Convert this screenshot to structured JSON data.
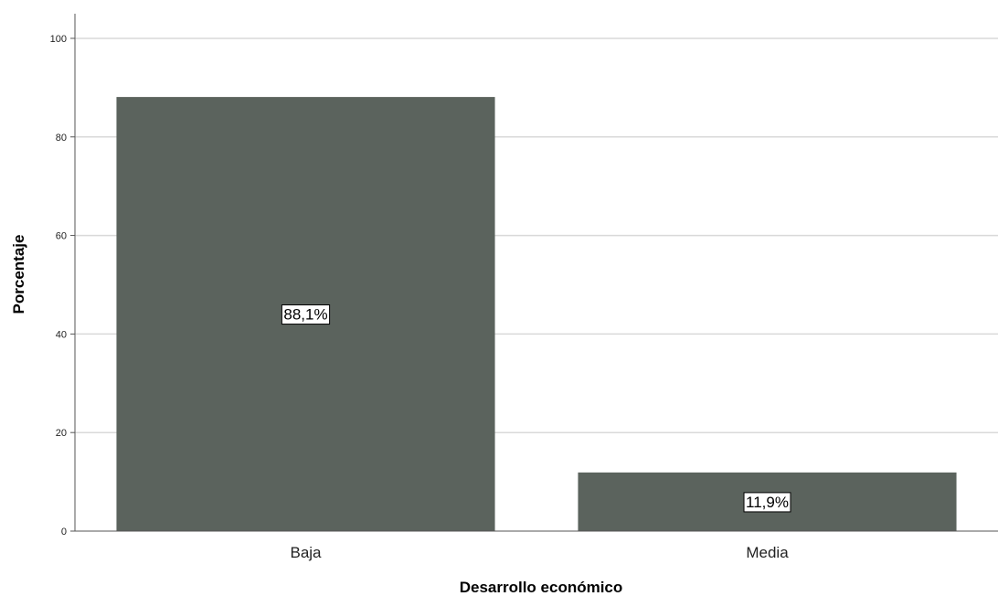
{
  "chart_data": {
    "type": "bar",
    "categories": [
      "Baja",
      "Media"
    ],
    "values": [
      88.1,
      11.9
    ],
    "data_labels": [
      "88,1%",
      "11,9%"
    ],
    "title": "",
    "xlabel": "Desarrollo económico",
    "ylabel": "Porcentaje",
    "ylim": [
      0,
      105
    ],
    "yticks": [
      0,
      20,
      40,
      60,
      80,
      100
    ],
    "ytick_labels": [
      "0",
      "20",
      "40",
      "60",
      "80",
      "100"
    ],
    "grid": "horizontal",
    "legend": "none",
    "colors": {
      "bar": "#5b635d",
      "grid": "#d9d9d9",
      "axis": "#555555",
      "label_box": "#ffffff"
    }
  }
}
